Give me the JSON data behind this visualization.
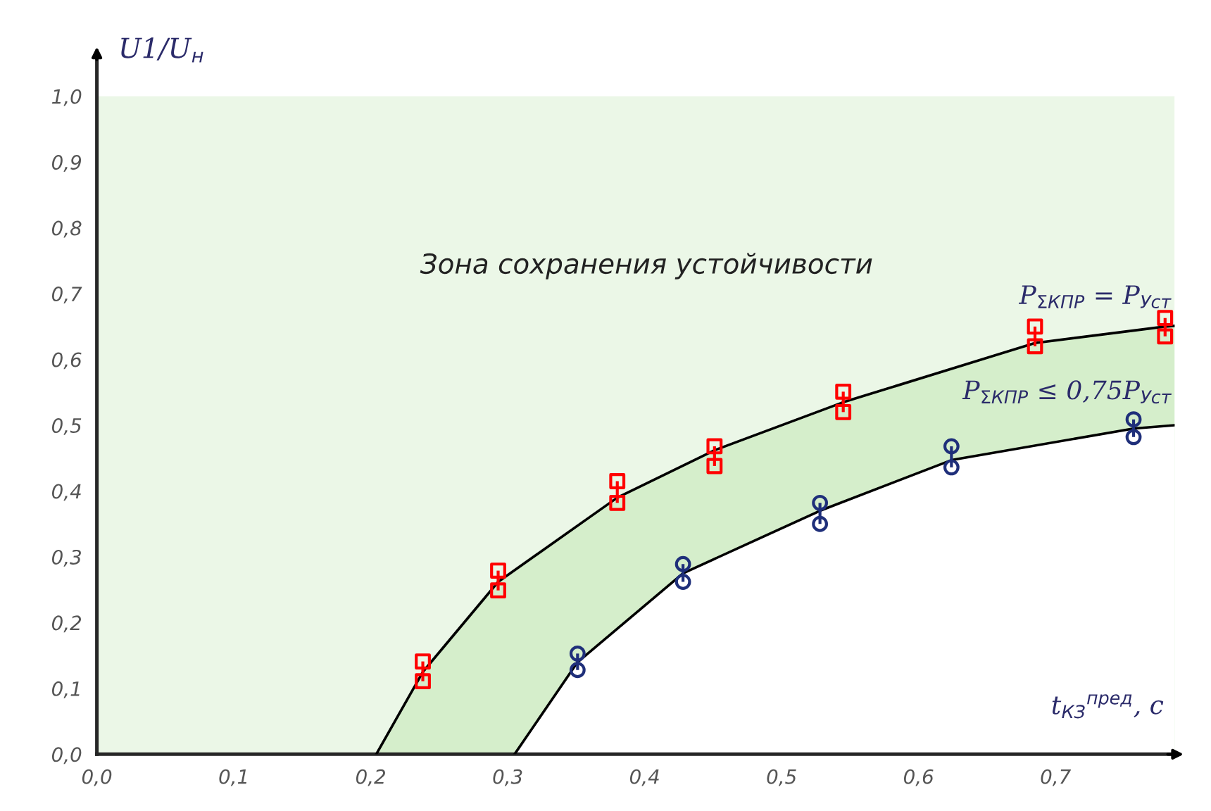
{
  "chart_data": {
    "type": "scatter",
    "xlabel": "t$_{КЗ}$$^{пред}$, с",
    "ylabel": "U1/U$_{н}$",
    "xlim": [
      0,
      0.787
    ],
    "ylim": [
      0,
      1.06
    ],
    "xticks": [
      {
        "value": 0,
        "label": "0,0"
      },
      {
        "value": 0.1,
        "label": "0,1"
      },
      {
        "value": 0.2,
        "label": "0,2"
      },
      {
        "value": 0.3,
        "label": "0,3"
      },
      {
        "value": 0.4,
        "label": "0,4"
      },
      {
        "value": 0.5,
        "label": "0,5"
      },
      {
        "value": 0.6,
        "label": "0,6"
      },
      {
        "value": 0.7,
        "label": "0,7"
      }
    ],
    "yticks": [
      {
        "value": 0,
        "label": "0,0"
      },
      {
        "value": 0.1,
        "label": "0,1"
      },
      {
        "value": 0.2,
        "label": "0,2"
      },
      {
        "value": 0.3,
        "label": "0,3"
      },
      {
        "value": 0.4,
        "label": "0,4"
      },
      {
        "value": 0.5,
        "label": "0,5"
      },
      {
        "value": 0.6,
        "label": "0,6"
      },
      {
        "value": 0.7,
        "label": "0,7"
      },
      {
        "value": 0.8,
        "label": "0,8"
      },
      {
        "value": 0.9,
        "label": "0,9"
      },
      {
        "value": 1.0,
        "label": "1,0"
      }
    ],
    "bands": [
      {
        "axis": "y",
        "from": 0,
        "to": 1.0,
        "color": "#ebf7e7"
      }
    ],
    "series": [
      {
        "type": "area",
        "color": "#d5eecb",
        "x": [
          0.204,
          0.238,
          0.293,
          0.38,
          0.451,
          0.545,
          0.685,
          0.78,
          0.787
        ],
        "values": [
          0,
          0.125,
          0.262,
          0.39,
          0.462,
          0.535,
          0.625,
          0.65,
          0.651
        ]
      },
      {
        "type": "area",
        "color": "#ffffff",
        "x": [
          0.305,
          0.351,
          0.428,
          0.528,
          0.624,
          0.757,
          0.787
        ],
        "values": [
          0,
          0.14,
          0.275,
          0.37,
          0.447,
          0.495,
          0.5
        ]
      },
      {
        "type": "scatter",
        "marker": "square",
        "color": "#ff0000",
        "x": [
          0.238,
          0.293,
          0.38,
          0.451,
          0.545,
          0.685,
          0.78
        ],
        "values": [
          0.141,
          0.279,
          0.415,
          0.468,
          0.551,
          0.65,
          0.663
        ]
      },
      {
        "type": "scatter",
        "marker": "square",
        "color": "#ff0000",
        "x": [
          0.238,
          0.293,
          0.38,
          0.451,
          0.545,
          0.685,
          0.78
        ],
        "values": [
          0.111,
          0.249,
          0.382,
          0.438,
          0.52,
          0.62,
          0.635
        ],
        "errors": [
          [
            0.111,
            0.141
          ],
          [
            0.249,
            0.279
          ],
          [
            0.382,
            0.415
          ],
          [
            0.438,
            0.468
          ],
          [
            0.52,
            0.551
          ],
          [
            0.62,
            0.65
          ],
          [
            0.635,
            0.663
          ]
        ]
      },
      {
        "type": "scatter",
        "marker": "circle",
        "color": "#1f2f7a",
        "x": [
          0.351,
          0.428,
          0.528,
          0.624,
          0.757
        ],
        "values": [
          0.153,
          0.289,
          0.382,
          0.468,
          0.509
        ]
      },
      {
        "type": "scatter",
        "marker": "circle",
        "color": "#1f2f7a",
        "x": [
          0.351,
          0.428,
          0.528,
          0.624,
          0.757
        ],
        "values": [
          0.128,
          0.262,
          0.35,
          0.436,
          0.482
        ],
        "errors": [
          [
            0.128,
            0.153
          ],
          [
            0.262,
            0.289
          ],
          [
            0.35,
            0.382
          ],
          [
            0.436,
            0.468
          ],
          [
            0.482,
            0.509
          ]
        ]
      }
    ],
    "annotations": [
      "Зона сохранения устойчивости",
      {
        "text": "P$_{ΣКПР}$ = P$_{Уст}$",
        "x": 0.785,
        "y": 0.695
      },
      {
        "text": "P$_{ΣКПР}$ ≤ 0,75P$_{Уст}$",
        "x": 0.785,
        "y": 0.55
      }
    ]
  }
}
